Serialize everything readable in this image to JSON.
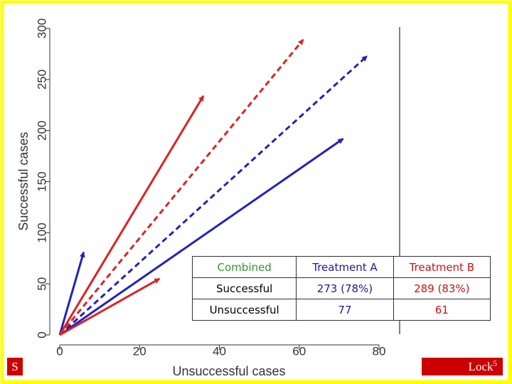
{
  "chart_data": {
    "type": "arrow",
    "xlabel": "Unsuccessful cases",
    "ylabel": "Successful cases",
    "xlim": [
      0,
      80
    ],
    "xticks": [
      0,
      20,
      40,
      60,
      80
    ],
    "ylim": [
      0,
      300
    ],
    "yticks": [
      0,
      50,
      100,
      150,
      200,
      250,
      300
    ],
    "series": [
      {
        "color": "#2222bb",
        "dashed": false,
        "x": [
          6
        ],
        "values": [
          81
        ]
      },
      {
        "color": "#2222bb",
        "dashed": false,
        "x": [
          71
        ],
        "values": [
          192
        ]
      },
      {
        "color": "#2222bb",
        "dashed": true,
        "x": [
          77
        ],
        "values": [
          273
        ]
      },
      {
        "color": "#dd2222",
        "dashed": false,
        "x": [
          36
        ],
        "values": [
          234
        ]
      },
      {
        "color": "#dd2222",
        "dashed": false,
        "x": [
          25
        ],
        "values": [
          55
        ]
      },
      {
        "color": "#dd2222",
        "dashed": true,
        "x": [
          61
        ],
        "values": [
          289
        ]
      }
    ]
  },
  "table": {
    "header": [
      "Combined",
      "Treatment A",
      "Treatment B"
    ],
    "rows": [
      [
        "Successful",
        "273 (78%)",
        "289 (83%)"
      ],
      [
        "Unsuccessful",
        "77",
        "61"
      ]
    ]
  },
  "footer": {
    "left": "S",
    "right": "Lock",
    "right_sup": "5"
  }
}
